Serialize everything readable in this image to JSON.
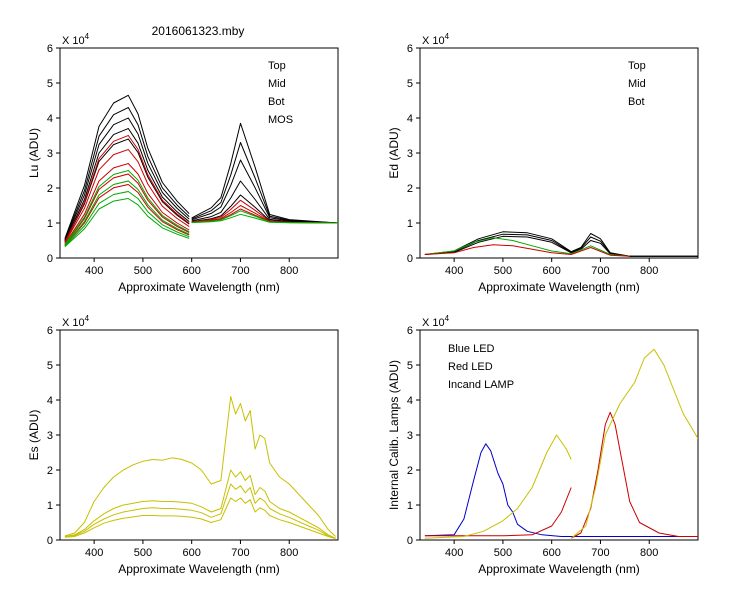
{
  "figure_title": "2016061323.mby",
  "chart_data": [
    {
      "id": "lu",
      "type": "line",
      "ylabel": "Lu (ADU)",
      "xlabel": "Approximate Wavelength (nm)",
      "exponent_label": "X 10",
      "exponent_power": "4",
      "xlim": [
        330,
        900
      ],
      "ylim": [
        0,
        6
      ],
      "xticks": [
        400,
        500,
        600,
        700,
        800
      ],
      "yticks": [
        0,
        1,
        2,
        3,
        4,
        5,
        6
      ],
      "legend": [
        {
          "label": "Top",
          "color": "#000000"
        },
        {
          "label": "Mid",
          "color": "#cc0000"
        },
        {
          "label": "Bot",
          "color": "#00aa00"
        },
        {
          "label": "MOS",
          "color": "#0000cc"
        }
      ],
      "series_groups": [
        {
          "name": "Top",
          "color": "#000000",
          "segments": [
            {
              "x": [
                340,
                380,
                410,
                440,
                470,
                490,
                510,
                540,
                570,
                595
              ],
              "peaks": [
                4.65,
                4.3,
                4.0,
                3.7,
                3.4
              ]
            },
            {
              "x": [
                600,
                640,
                660,
                680,
                700,
                730,
                760,
                800,
                900
              ],
              "peaks": [
                3.85,
                3.3,
                2.8,
                2.2,
                1.8
              ]
            }
          ]
        },
        {
          "name": "Mid",
          "color": "#cc0000",
          "segments": [
            {
              "x": [
                340,
                380,
                410,
                440,
                470,
                490,
                510,
                540,
                570,
                595
              ],
              "peaks": [
                3.5,
                3.1,
                2.7,
                2.4,
                2.1
              ]
            },
            {
              "x": [
                600,
                640,
                660,
                680,
                700,
                730,
                760,
                800,
                900
              ],
              "peaks": [
                1.65,
                1.5,
                1.4
              ]
            }
          ]
        },
        {
          "name": "Bot",
          "color": "#00aa00",
          "segments": [
            {
              "x": [
                340,
                380,
                410,
                440,
                470,
                490,
                510,
                540,
                570,
                595
              ],
              "peaks": [
                2.5,
                2.2,
                1.9,
                1.7
              ]
            },
            {
              "x": [
                600,
                640,
                660,
                680,
                700,
                730,
                760,
                800,
                900
              ],
              "peaks": [
                1.35,
                1.25
              ]
            }
          ]
        }
      ],
      "profiles": [
        [
          0.08,
          0.42,
          0.8,
          0.95,
          1.0,
          0.88,
          0.66,
          0.44,
          0.32,
          0.24
        ],
        [
          0.3,
          0.36,
          0.42,
          0.62,
          0.86,
          0.6,
          0.32,
          0.29,
          0.27
        ]
      ],
      "baseline_right": 1.0
    },
    {
      "id": "ed",
      "type": "line",
      "ylabel": "Ed  (ADU)",
      "xlabel": "Approximate Wavelength (nm)",
      "exponent_label": "X 10",
      "exponent_power": "4",
      "xlim": [
        330,
        900
      ],
      "ylim": [
        0,
        6
      ],
      "xticks": [
        400,
        500,
        600,
        700,
        800
      ],
      "yticks": [
        0,
        1,
        2,
        3,
        4,
        5,
        6
      ],
      "legend": [
        {
          "label": "Top",
          "color": "#000000"
        },
        {
          "label": "Mid",
          "color": "#cc0000"
        },
        {
          "label": "Bot",
          "color": "#00aa00"
        }
      ],
      "series": [
        {
          "name": "Top",
          "color": "#000000",
          "x": [
            340,
            400,
            450,
            500,
            550,
            600,
            640,
            660,
            680,
            700,
            720,
            760,
            900
          ],
          "y": [
            0.1,
            0.2,
            0.55,
            0.75,
            0.72,
            0.55,
            0.18,
            0.3,
            0.7,
            0.55,
            0.15,
            0.05,
            0.05
          ]
        },
        {
          "name": "Top",
          "color": "#000000",
          "x": [
            340,
            400,
            450,
            500,
            550,
            600,
            640,
            660,
            680,
            700,
            720,
            760,
            900
          ],
          "y": [
            0.1,
            0.18,
            0.5,
            0.68,
            0.66,
            0.5,
            0.16,
            0.28,
            0.6,
            0.48,
            0.14,
            0.05,
            0.05
          ]
        },
        {
          "name": "Top",
          "color": "#000000",
          "x": [
            340,
            400,
            450,
            500,
            550,
            600,
            640,
            660,
            680,
            700,
            720,
            760,
            900
          ],
          "y": [
            0.1,
            0.16,
            0.45,
            0.62,
            0.6,
            0.45,
            0.15,
            0.25,
            0.5,
            0.42,
            0.12,
            0.05,
            0.05
          ]
        },
        {
          "name": "Bot",
          "color": "#00aa00",
          "x": [
            340,
            400,
            440,
            480,
            520,
            560,
            600,
            640,
            680,
            720,
            760
          ],
          "y": [
            0.1,
            0.2,
            0.45,
            0.58,
            0.5,
            0.35,
            0.2,
            0.12,
            0.35,
            0.1,
            0.05
          ]
        },
        {
          "name": "Mid",
          "color": "#cc0000",
          "x": [
            340,
            400,
            440,
            480,
            520,
            560,
            600,
            640,
            680,
            720,
            760
          ],
          "y": [
            0.1,
            0.15,
            0.3,
            0.38,
            0.35,
            0.25,
            0.15,
            0.1,
            0.3,
            0.08,
            0.05
          ]
        }
      ]
    },
    {
      "id": "es",
      "type": "line",
      "ylabel": "Es  (ADU)",
      "xlabel": "Approximate Wavelength (nm)",
      "exponent_label": "X 10",
      "exponent_power": "4",
      "xlim": [
        330,
        900
      ],
      "ylim": [
        0,
        6
      ],
      "xticks": [
        400,
        500,
        600,
        700,
        800
      ],
      "yticks": [
        0,
        1,
        2,
        3,
        4,
        5,
        6
      ],
      "series_color": "#c8c000",
      "x": [
        340,
        360,
        380,
        400,
        420,
        440,
        460,
        480,
        500,
        520,
        540,
        560,
        580,
        600,
        620,
        640,
        660,
        680,
        690,
        700,
        710,
        720,
        730,
        740,
        750,
        760,
        780,
        800,
        820,
        840,
        860,
        880,
        895
      ],
      "series": [
        {
          "y": [
            0.12,
            0.2,
            0.5,
            1.1,
            1.5,
            1.8,
            2.0,
            2.15,
            2.25,
            2.3,
            2.28,
            2.35,
            2.3,
            2.2,
            2.0,
            1.6,
            1.7,
            4.1,
            3.6,
            3.9,
            3.4,
            3.7,
            2.6,
            3.0,
            2.9,
            2.2,
            1.8,
            1.6,
            1.3,
            1.0,
            0.7,
            0.3,
            0.1
          ]
        },
        {
          "y": [
            0.1,
            0.15,
            0.3,
            0.55,
            0.75,
            0.9,
            1.0,
            1.05,
            1.1,
            1.12,
            1.1,
            1.1,
            1.08,
            1.05,
            0.95,
            0.8,
            0.9,
            2.0,
            1.8,
            1.95,
            1.7,
            1.85,
            1.3,
            1.5,
            1.4,
            1.1,
            0.9,
            0.8,
            0.65,
            0.5,
            0.35,
            0.15,
            0.05
          ]
        },
        {
          "y": [
            0.1,
            0.13,
            0.25,
            0.45,
            0.6,
            0.72,
            0.8,
            0.85,
            0.9,
            0.92,
            0.9,
            0.9,
            0.88,
            0.85,
            0.78,
            0.65,
            0.75,
            1.6,
            1.45,
            1.55,
            1.35,
            1.5,
            1.05,
            1.2,
            1.1,
            0.9,
            0.75,
            0.65,
            0.52,
            0.4,
            0.28,
            0.12,
            0.05
          ]
        },
        {
          "y": [
            0.08,
            0.1,
            0.2,
            0.35,
            0.48,
            0.56,
            0.62,
            0.66,
            0.7,
            0.7,
            0.69,
            0.69,
            0.68,
            0.65,
            0.6,
            0.5,
            0.58,
            1.2,
            1.1,
            1.2,
            1.05,
            1.15,
            0.8,
            0.92,
            0.85,
            0.7,
            0.58,
            0.5,
            0.4,
            0.3,
            0.2,
            0.1,
            0.04
          ]
        }
      ]
    },
    {
      "id": "lamps",
      "type": "line",
      "ylabel": "Internal Calib. Lamps (ADU)",
      "xlabel": "Approximate Wavelength (nm)",
      "exponent_label": "X 10",
      "exponent_power": "4",
      "xlim": [
        330,
        900
      ],
      "ylim": [
        0,
        6
      ],
      "xticks": [
        400,
        500,
        600,
        700,
        800
      ],
      "yticks": [
        0,
        1,
        2,
        3,
        4,
        5,
        6
      ],
      "legend": [
        {
          "label": "Blue LED",
          "color": "#0000cc"
        },
        {
          "label": "Red LED",
          "color": "#cc0000"
        },
        {
          "label": "Incand LAMP",
          "color": "#c8c000"
        }
      ],
      "series": [
        {
          "name": "Blue LED",
          "color": "#0000cc",
          "x": [
            340,
            400,
            420,
            440,
            455,
            465,
            475,
            490,
            500,
            510,
            520,
            530,
            550,
            580,
            620,
            700,
            800,
            900
          ],
          "y": [
            0.12,
            0.15,
            0.6,
            1.7,
            2.5,
            2.75,
            2.55,
            1.9,
            1.6,
            1.0,
            0.8,
            0.45,
            0.25,
            0.15,
            0.1,
            0.1,
            0.1,
            0.1
          ]
        },
        {
          "name": "Red LED",
          "color": "#cc0000",
          "x": [
            340,
            500,
            560,
            600,
            620,
            640
          ],
          "y": [
            0.12,
            0.12,
            0.15,
            0.4,
            0.8,
            1.5
          ]
        },
        {
          "name": "Red LED",
          "color": "#cc0000",
          "x": [
            640,
            660,
            680,
            695,
            710,
            720,
            730,
            745,
            760,
            780,
            820,
            860,
            900
          ],
          "y": [
            0.05,
            0.2,
            0.9,
            2.0,
            3.3,
            3.65,
            3.3,
            2.2,
            1.1,
            0.5,
            0.2,
            0.1,
            0.1
          ]
        },
        {
          "name": "Incand LAMP",
          "color": "#c8c000",
          "x": [
            340,
            420,
            460,
            500,
            530,
            560,
            590,
            610,
            630,
            640
          ],
          "y": [
            0.05,
            0.1,
            0.25,
            0.55,
            0.9,
            1.5,
            2.5,
            3.0,
            2.6,
            2.3
          ]
        },
        {
          "name": "Incand LAMP",
          "color": "#c8c000",
          "x": [
            640,
            670,
            690,
            710,
            740,
            770,
            790,
            810,
            830,
            850,
            870,
            900
          ],
          "y": [
            0.05,
            0.4,
            1.5,
            3.0,
            3.9,
            4.5,
            5.2,
            5.45,
            5.0,
            4.3,
            3.6,
            2.9
          ]
        }
      ]
    }
  ]
}
